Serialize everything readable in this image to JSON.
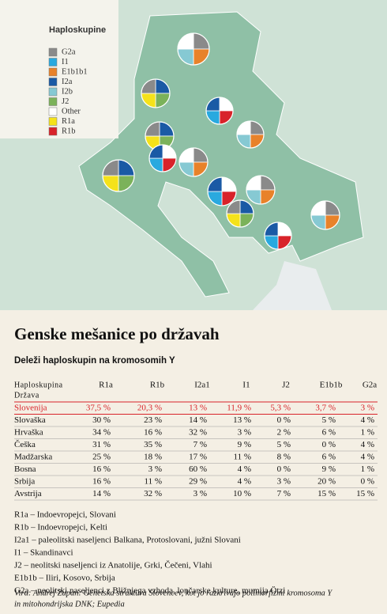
{
  "map": {
    "legend": {
      "title": "Haploskupine",
      "items": [
        {
          "label": "G2a",
          "color": "#8a8a8a"
        },
        {
          "label": "I1",
          "color": "#29a9df"
        },
        {
          "label": "E1b1b1",
          "color": "#e8822a"
        },
        {
          "label": "I2a",
          "color": "#1a5aa5"
        },
        {
          "label": "I2b",
          "color": "#86c9d3"
        },
        {
          "label": "J2",
          "color": "#7bb25a"
        },
        {
          "label": "Other",
          "color": "#ffffff"
        },
        {
          "label": "R1a",
          "color": "#f5e21a"
        },
        {
          "label": "R1b",
          "color": "#d8232a"
        }
      ]
    }
  },
  "heading": {
    "title": "Genske mešanice po državah",
    "subtitle": "Deleži haploskupin na kromosomih Y"
  },
  "table": {
    "corner": [
      "Haploskupina",
      "Država"
    ],
    "columns": [
      "R1a",
      "R1b",
      "I2a1",
      "I1",
      "J2",
      "E1b1b",
      "G2a"
    ],
    "rows": [
      [
        "Slovenija",
        "37,5 %",
        "20,3 %",
        "13 %",
        "11,9 %",
        "5,3 %",
        "3,7 %",
        "3 %"
      ],
      [
        "Slovaška",
        "30 %",
        "23 %",
        "14 %",
        "13 %",
        "0 %",
        "5 %",
        "4 %"
      ],
      [
        "Hrvaška",
        "34 %",
        "16 %",
        "32 %",
        "3 %",
        "2 %",
        "6 %",
        "1 %"
      ],
      [
        "Češka",
        "31 %",
        "35 %",
        "7 %",
        "9 %",
        "5 %",
        "0 %",
        "4 %"
      ],
      [
        "Madžarska",
        "25 %",
        "18 %",
        "17 %",
        "11 %",
        "8 %",
        "6 %",
        "4 %"
      ],
      [
        "Bosna",
        "16 %",
        "3 %",
        "60 %",
        "4 %",
        "0 %",
        "9 %",
        "1 %"
      ],
      [
        "Srbija",
        "16 %",
        "11 %",
        "29 %",
        "4 %",
        "3 %",
        "20 %",
        "0 %"
      ],
      [
        "Avstrija",
        "14 %",
        "32 %",
        "3 %",
        "10 %",
        "7 %",
        "15 %",
        "15 %"
      ]
    ]
  },
  "notes": [
    "R1a – Indoevropejci, Slovani",
    "R1b – Indoevropejci, Kelti",
    "I2a1 – paleolitski naseljenci Balkana, Protoslovani, južni Slovani",
    "I1 – Skandinavci",
    "J2 – neolitski naseljenci iz Anatolije, Grki, Čečeni, Vlahi",
    "E1b1b – Iliri, Kosovo, Srbija",
    "G2a – neolitski naseljenci z Bližnjega vzhoda, lončarske kulture, mumija Ötzi"
  ],
  "source": [
    "Vira: Andrej Zupan: Genetska struktura Slovencev, kot jo razkrivajo polimorfizmi kromosoma Y",
    "in mitohondrijska DNK; Eupedia"
  ]
}
